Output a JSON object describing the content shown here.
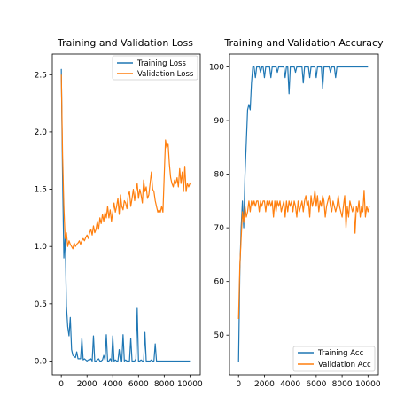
{
  "chart_data": [
    {
      "type": "line",
      "title": "Training and Validation Loss",
      "xlabel": "",
      "ylabel": "",
      "xlim": [
        -700,
        10800
      ],
      "ylim": [
        -0.12,
        2.68
      ],
      "xticks": [
        0,
        2000,
        4000,
        6000,
        8000,
        10000
      ],
      "yticks": [
        0.0,
        0.5,
        1.0,
        1.5,
        2.0,
        2.5
      ],
      "ytick_labels": [
        "0.0",
        "0.5",
        "1.0",
        "1.5",
        "2.0",
        "2.5"
      ],
      "legend_position": "top-right",
      "grid": false,
      "series": [
        {
          "name": "Training Loss",
          "color": "#1f77b4",
          "x": [
            0,
            100,
            200,
            300,
            400,
            500,
            600,
            700,
            800,
            900,
            1000,
            1100,
            1200,
            1300,
            1400,
            1500,
            1600,
            1700,
            1800,
            1900,
            2000,
            2100,
            2200,
            2300,
            2400,
            2500,
            2600,
            2700,
            2800,
            2900,
            3000,
            3100,
            3200,
            3300,
            3400,
            3500,
            3600,
            3700,
            3800,
            3900,
            4000,
            4100,
            4200,
            4300,
            4400,
            4500,
            4600,
            4700,
            4800,
            4900,
            5000,
            5100,
            5200,
            5300,
            5400,
            5500,
            5600,
            5700,
            5800,
            5900,
            6000,
            6100,
            6200,
            6300,
            6400,
            6500,
            6600,
            6700,
            6800,
            6900,
            7000,
            7100,
            7200,
            7300,
            7400,
            7500,
            7600,
            7700,
            7800,
            7900,
            8000,
            8100,
            8200,
            8300,
            8400,
            8500,
            8600,
            8700,
            8800,
            8900,
            9000,
            9200,
            9400,
            9600,
            9800,
            10000
          ],
          "y": [
            2.55,
            1.6,
            0.9,
            1.1,
            0.48,
            0.3,
            0.22,
            0.38,
            0.1,
            0.05,
            0.04,
            0.03,
            0.08,
            0.02,
            0.02,
            0.02,
            0.2,
            0.01,
            0.02,
            0.01,
            0.0,
            0.01,
            0.01,
            0.02,
            0.0,
            0.22,
            0.0,
            0.0,
            0.01,
            0.02,
            0.0,
            0.0,
            0.01,
            0.05,
            0.01,
            0.23,
            0.0,
            0.0,
            0.02,
            0.0,
            0.22,
            0.0,
            0.01,
            0.0,
            0.0,
            0.1,
            0.0,
            0.0,
            0.23,
            0.0,
            0.01,
            0.0,
            0.0,
            0.0,
            0.2,
            0.0,
            0.0,
            0.0,
            0.02,
            0.46,
            0.0,
            0.0,
            0.01,
            0.0,
            0.0,
            0.25,
            0.0,
            0.0,
            0.0,
            0.0,
            0.01,
            0.0,
            0.0,
            0.15,
            0.0,
            0.0,
            0.0,
            0.0,
            0.0,
            0.0,
            0.0,
            0.0,
            0.0,
            0.0,
            0.0,
            0.0,
            0.0,
            0.0,
            0.0,
            0.0,
            0.0,
            0.0,
            0.0,
            0.0,
            0.0,
            0.0
          ]
        },
        {
          "name": "Validation Loss",
          "color": "#ff7f0e",
          "x": [
            0,
            100,
            200,
            300,
            400,
            500,
            600,
            700,
            800,
            900,
            1000,
            1100,
            1200,
            1300,
            1400,
            1500,
            1600,
            1700,
            1800,
            1900,
            2000,
            2100,
            2200,
            2300,
            2400,
            2500,
            2600,
            2700,
            2800,
            2900,
            3000,
            3100,
            3200,
            3300,
            3400,
            3500,
            3600,
            3700,
            3800,
            3900,
            4000,
            4100,
            4200,
            4300,
            4400,
            4500,
            4600,
            4700,
            4800,
            4900,
            5000,
            5100,
            5200,
            5300,
            5400,
            5500,
            5600,
            5700,
            5800,
            5900,
            6000,
            6100,
            6200,
            6300,
            6400,
            6500,
            6600,
            6700,
            6800,
            6900,
            7000,
            7100,
            7200,
            7300,
            7400,
            7500,
            7600,
            7700,
            7800,
            7900,
            8000,
            8100,
            8200,
            8300,
            8400,
            8500,
            8600,
            8700,
            8800,
            8900,
            9000,
            9100,
            9200,
            9300,
            9400,
            9500,
            9600,
            9700,
            9800,
            9900,
            10000,
            10100
          ],
          "y": [
            2.5,
            1.8,
            1.35,
            1.07,
            1.12,
            1.0,
            1.05,
            1.02,
            1.0,
            0.98,
            1.03,
            1.0,
            1.02,
            1.03,
            1.05,
            1.02,
            1.05,
            1.07,
            1.05,
            1.08,
            1.1,
            1.07,
            1.12,
            1.15,
            1.1,
            1.18,
            1.12,
            1.15,
            1.22,
            1.15,
            1.25,
            1.2,
            1.28,
            1.22,
            1.3,
            1.25,
            1.35,
            1.25,
            1.32,
            1.22,
            1.3,
            1.38,
            1.3,
            1.35,
            1.42,
            1.28,
            1.45,
            1.35,
            1.32,
            1.4,
            1.38,
            1.33,
            1.45,
            1.48,
            1.35,
            1.42,
            1.5,
            1.4,
            1.48,
            1.55,
            1.42,
            1.5,
            1.45,
            1.38,
            1.58,
            1.48,
            1.52,
            1.42,
            1.45,
            1.55,
            1.65,
            1.5,
            1.48,
            1.4,
            1.35,
            1.3,
            1.32,
            1.3,
            1.35,
            1.3,
            1.62,
            1.93,
            1.86,
            1.9,
            1.72,
            1.6,
            1.55,
            1.52,
            1.58,
            1.55,
            1.6,
            1.52,
            1.68,
            1.55,
            1.65,
            1.48,
            1.7,
            1.48,
            1.55,
            1.52,
            1.55,
            1.56
          ]
        }
      ]
    },
    {
      "type": "line",
      "title": "Training and Validation Accuracy",
      "xlabel": "",
      "ylabel": "",
      "xlim": [
        -700,
        10800
      ],
      "ylim": [
        42.6,
        102.4
      ],
      "xticks": [
        0,
        2000,
        4000,
        6000,
        8000,
        10000
      ],
      "yticks": [
        50,
        60,
        70,
        80,
        90,
        100
      ],
      "ytick_labels": [
        "50",
        "60",
        "70",
        "80",
        "90",
        "100"
      ],
      "legend_position": "lower-right",
      "grid": false,
      "series": [
        {
          "name": "Training Acc",
          "color": "#1f77b4",
          "x": [
            0,
            100,
            200,
            300,
            400,
            500,
            600,
            700,
            800,
            900,
            1000,
            1100,
            1200,
            1300,
            1400,
            1500,
            1600,
            1700,
            1800,
            1900,
            2000,
            2100,
            2200,
            2300,
            2400,
            2500,
            2600,
            2700,
            2800,
            2900,
            3000,
            3100,
            3200,
            3300,
            3400,
            3500,
            3600,
            3700,
            3800,
            3900,
            4000,
            4100,
            4200,
            4300,
            4400,
            4500,
            4600,
            4700,
            4800,
            4900,
            5000,
            5100,
            5200,
            5300,
            5400,
            5500,
            5600,
            5700,
            5800,
            5900,
            6000,
            6100,
            6200,
            6300,
            6400,
            6500,
            6600,
            6700,
            6800,
            6900,
            7000,
            7100,
            7200,
            7300,
            7400,
            7500,
            7600,
            7700,
            7800,
            7900,
            8000,
            8200,
            8400,
            8600,
            8800,
            9000,
            9200,
            9400,
            9600,
            9800,
            10000
          ],
          "y": [
            45,
            62,
            70,
            75,
            70,
            80,
            86,
            92,
            93,
            92,
            97,
            100,
            100,
            98,
            100,
            100,
            100,
            99,
            100,
            100,
            98,
            100,
            100,
            100,
            100,
            98,
            100,
            100,
            100,
            100,
            99,
            100,
            100,
            100,
            100,
            100,
            98,
            100,
            100,
            95,
            100,
            100,
            100,
            100,
            99,
            100,
            100,
            100,
            100,
            100,
            97,
            100,
            100,
            100,
            100,
            98,
            100,
            100,
            100,
            100,
            98,
            100,
            100,
            100,
            100,
            96,
            100,
            100,
            100,
            100,
            100,
            99,
            100,
            100,
            100,
            98,
            100,
            100,
            100,
            100,
            100,
            100,
            100,
            100,
            100,
            100,
            100,
            100,
            100,
            100,
            100
          ]
        },
        {
          "name": "Validation Acc",
          "color": "#ff7f0e",
          "x": [
            0,
            100,
            200,
            300,
            400,
            500,
            600,
            700,
            800,
            900,
            1000,
            1100,
            1200,
            1300,
            1400,
            1500,
            1600,
            1700,
            1800,
            1900,
            2000,
            2100,
            2200,
            2300,
            2400,
            2500,
            2600,
            2700,
            2800,
            2900,
            3000,
            3100,
            3200,
            3300,
            3400,
            3500,
            3600,
            3700,
            3800,
            3900,
            4000,
            4100,
            4200,
            4300,
            4400,
            4500,
            4600,
            4700,
            4800,
            4900,
            5000,
            5100,
            5200,
            5300,
            5400,
            5500,
            5600,
            5700,
            5800,
            5900,
            6000,
            6100,
            6200,
            6300,
            6400,
            6500,
            6600,
            6700,
            6800,
            6900,
            7000,
            7100,
            7200,
            7300,
            7400,
            7500,
            7600,
            7700,
            7800,
            7900,
            8000,
            8100,
            8200,
            8300,
            8400,
            8500,
            8600,
            8700,
            8800,
            8900,
            9000,
            9100,
            9200,
            9300,
            9400,
            9500,
            9600,
            9700,
            9800,
            9900,
            10000,
            10100
          ],
          "y": [
            53,
            63,
            68,
            73,
            71,
            74,
            72,
            73,
            75,
            73,
            75,
            74,
            75,
            74,
            75,
            75,
            73,
            75,
            74,
            75,
            75,
            73,
            75,
            74,
            75,
            74,
            75,
            72,
            75,
            73,
            75,
            74,
            75,
            73,
            74,
            75,
            72,
            75,
            73,
            75,
            74,
            75,
            73,
            75,
            74,
            72,
            75,
            73,
            74,
            75,
            73,
            75,
            76,
            74,
            75,
            72,
            76,
            74,
            75,
            77,
            74,
            76,
            73,
            75,
            74,
            76,
            75,
            72,
            74,
            75,
            76,
            74,
            73,
            75,
            74,
            73,
            74,
            76,
            74,
            73,
            72,
            74,
            76,
            70,
            74,
            72,
            75,
            74,
            73,
            74,
            69,
            74,
            73,
            75,
            72,
            74,
            73,
            77,
            72,
            74,
            73,
            74
          ]
        }
      ]
    }
  ]
}
